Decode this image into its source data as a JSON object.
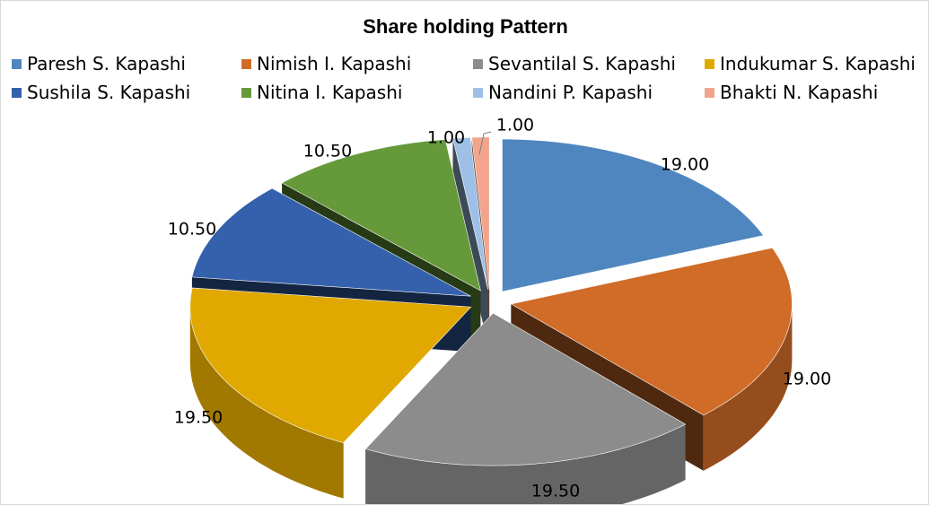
{
  "chart_data": {
    "type": "pie",
    "style": "3d-exploded",
    "title": "Share holding Pattern",
    "legend_position": "top",
    "categories": [
      "Paresh S. Kapashi",
      "Nimish I. Kapashi",
      "Sevantilal S. Kapashi",
      "Indukumar S. Kapashi",
      "Sushila S. Kapashi",
      "Nitina I. Kapashi",
      "Nandini P. Kapashi",
      "Bhakti N. Kapashi"
    ],
    "values": [
      19.0,
      19.0,
      19.5,
      19.5,
      10.5,
      10.5,
      1.0,
      1.0
    ],
    "data_labels": [
      "19.00",
      "19.00",
      "19.50",
      "19.50",
      "10.50",
      "10.50",
      "1.00",
      "1.00"
    ],
    "colors": [
      "#4f86bf",
      "#d06b28",
      "#8c8c8c",
      "#e0a800",
      "#3561ac",
      "#65993a",
      "#9fc0e6",
      "#f2a58c"
    ]
  }
}
